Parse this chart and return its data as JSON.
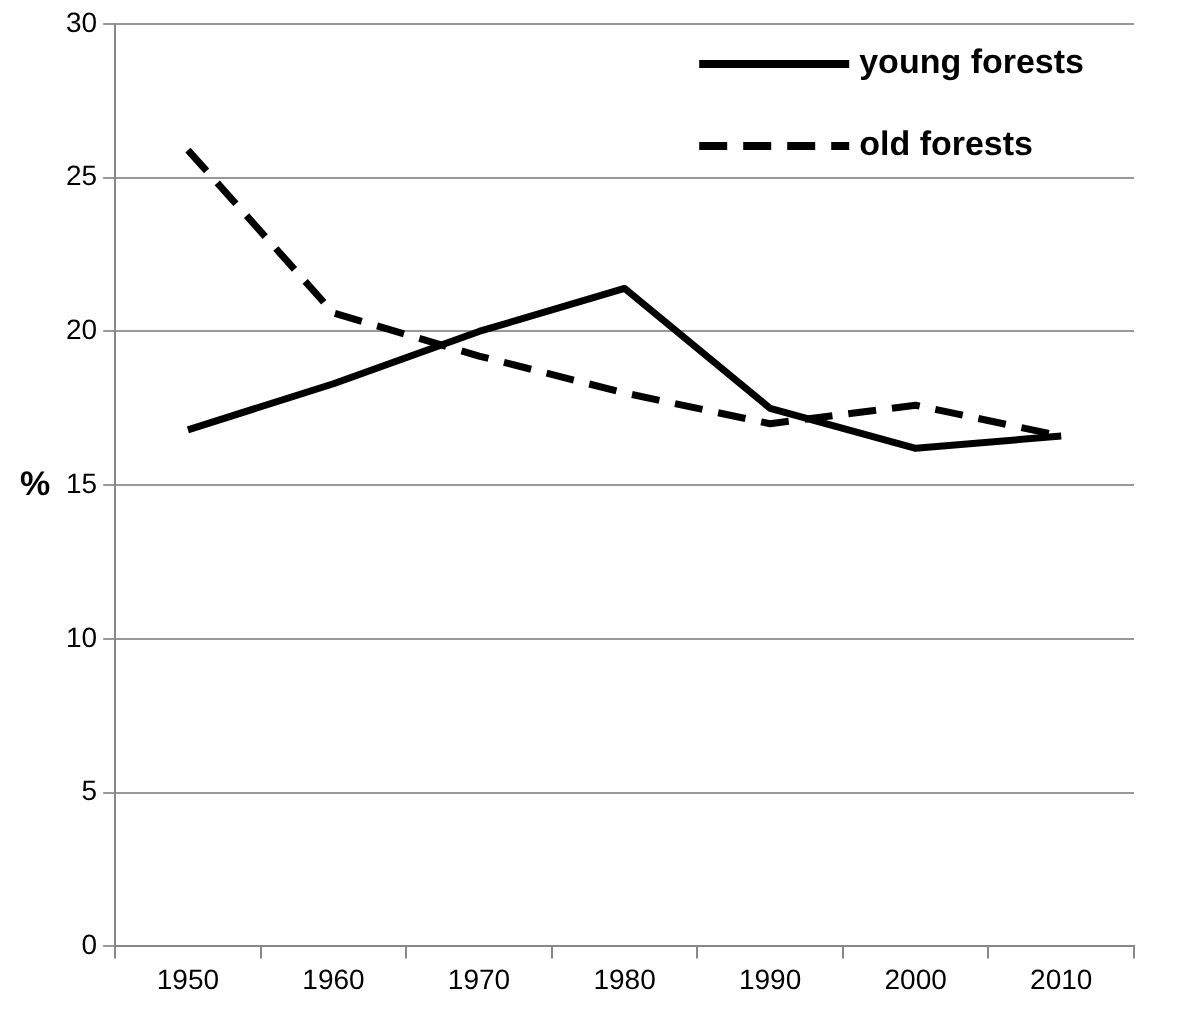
{
  "chart_data": {
    "type": "line",
    "ylabel": "%",
    "categories": [
      "1950",
      "1960",
      "1970",
      "1980",
      "1990",
      "2000",
      "2010"
    ],
    "series": [
      {
        "name": "young forests",
        "color": "#000000",
        "line_style": "solid",
        "values": [
          16.8,
          18.3,
          20.0,
          21.4,
          17.5,
          16.2,
          16.6
        ]
      },
      {
        "name": "old forests",
        "color": "#000000",
        "line_style": "dashed",
        "values": [
          25.9,
          20.6,
          19.2,
          18.0,
          17.0,
          17.6,
          16.6
        ]
      }
    ],
    "ylim": [
      0,
      30
    ],
    "yticks": [
      0,
      5,
      10,
      15,
      20,
      25,
      30
    ],
    "grid": "y",
    "legend": "top right",
    "marker": "none"
  }
}
